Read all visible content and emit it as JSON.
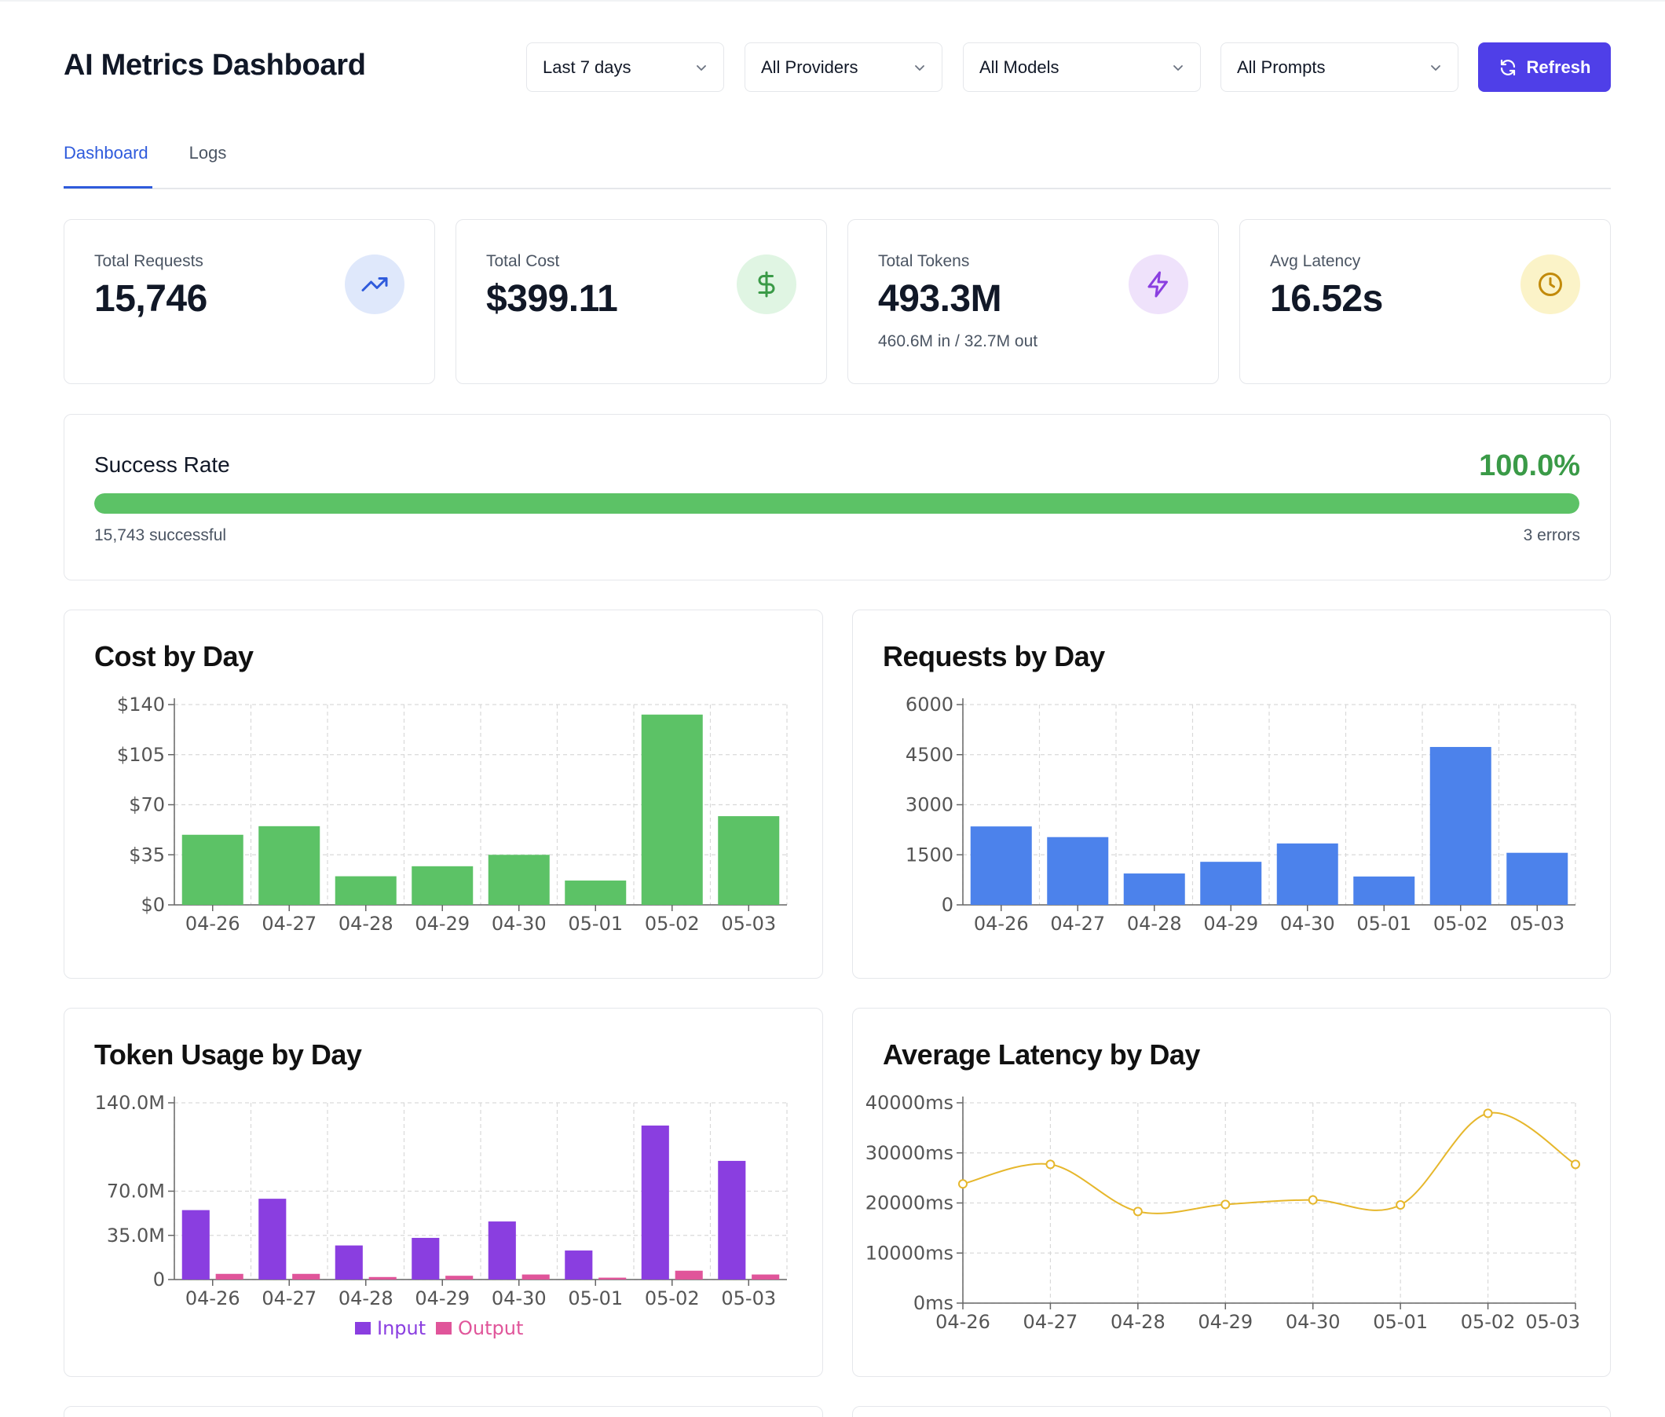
{
  "header": {
    "title": "AI Metrics Dashboard",
    "filters": [
      {
        "name": "date-range-select",
        "value": "Last 7 days"
      },
      {
        "name": "provider-select",
        "value": "All Providers"
      },
      {
        "name": "model-select",
        "value": "All Models"
      },
      {
        "name": "prompt-select",
        "value": "All Prompts"
      }
    ],
    "refresh_label": "Refresh"
  },
  "tabs": [
    {
      "label": "Dashboard",
      "active": true
    },
    {
      "label": "Logs",
      "active": false
    }
  ],
  "stats": {
    "requests": {
      "label": "Total Requests",
      "value": "15,746",
      "icon": "trending-up-icon",
      "icon_color": "#2f5bdc",
      "icon_bg": "#dfe8fb"
    },
    "cost": {
      "label": "Total Cost",
      "value": "$399.11",
      "icon": "dollar-icon",
      "icon_color": "#3a9a47",
      "icon_bg": "#e0f5e3"
    },
    "tokens": {
      "label": "Total Tokens",
      "value": "493.3M",
      "sub": "460.6M in / 32.7M out",
      "icon": "zap-icon",
      "icon_color": "#8a3ee0",
      "icon_bg": "#efe2fb"
    },
    "latency": {
      "label": "Avg Latency",
      "value": "16.52s",
      "icon": "clock-icon",
      "icon_color": "#c28a0a",
      "icon_bg": "#fbf3c8"
    }
  },
  "success_rate": {
    "label": "Success Rate",
    "value": "100.0%",
    "fraction": 0.9998,
    "successful_text": "15,743 successful",
    "errors_text": "3 errors"
  },
  "colors": {
    "cost_bar": "#5cc266",
    "requests_bar": "#4c82eb",
    "input_bar": "#8a3ee0",
    "output_bar": "#e0559a",
    "latency_line": "#e6b72c",
    "grid": "#d9d9d9",
    "axis": "#666666"
  },
  "chart_data": [
    {
      "type": "bar",
      "title": "Cost by Day",
      "categories": [
        "04-26",
        "04-27",
        "04-28",
        "04-29",
        "04-30",
        "05-01",
        "05-02",
        "05-03"
      ],
      "values": [
        49,
        55,
        20,
        27,
        35,
        17,
        133,
        62
      ],
      "ylim": [
        0,
        140
      ],
      "yticks": [
        0,
        35,
        70,
        105,
        140
      ],
      "ytick_labels": [
        "$0",
        "$35",
        "$70",
        "$105",
        "$140"
      ]
    },
    {
      "type": "bar",
      "title": "Requests by Day",
      "categories": [
        "04-26",
        "04-27",
        "04-28",
        "04-29",
        "04-30",
        "05-01",
        "05-02",
        "05-03"
      ],
      "values": [
        2350,
        2030,
        940,
        1290,
        1840,
        850,
        4730,
        1560
      ],
      "ylim": [
        0,
        6000
      ],
      "yticks": [
        0,
        1500,
        3000,
        4500,
        6000
      ],
      "ytick_labels": [
        "0",
        "1500",
        "3000",
        "4500",
        "6000"
      ]
    },
    {
      "type": "bar",
      "title": "Token Usage by Day",
      "categories": [
        "04-26",
        "04-27",
        "04-28",
        "04-29",
        "04-30",
        "05-01",
        "05-02",
        "05-03"
      ],
      "series": [
        {
          "name": "Input",
          "values": [
            55,
            64,
            27,
            33,
            46,
            23,
            122,
            94
          ]
        },
        {
          "name": "Output",
          "values": [
            4.5,
            4.5,
            2,
            3,
            4,
            1.5,
            7,
            4
          ]
        }
      ],
      "ylim": [
        0,
        140
      ],
      "yticks": [
        0,
        35,
        70,
        140
      ],
      "ytick_labels": [
        "0",
        "35.0M",
        "70.0M",
        "140.0M"
      ],
      "legend": "bottom"
    },
    {
      "type": "line",
      "title": "Average Latency by Day",
      "categories": [
        "04-26",
        "04-27",
        "04-28",
        "04-29",
        "04-30",
        "05-01",
        "05-02",
        "05-03"
      ],
      "values": [
        23800,
        27700,
        18300,
        19700,
        20600,
        19600,
        37900,
        27700
      ],
      "ylim": [
        0,
        40000
      ],
      "yticks": [
        0,
        10000,
        20000,
        30000,
        40000
      ],
      "ytick_labels": [
        "0ms",
        "10000ms",
        "20000ms",
        "30000ms",
        "40000ms"
      ]
    }
  ]
}
